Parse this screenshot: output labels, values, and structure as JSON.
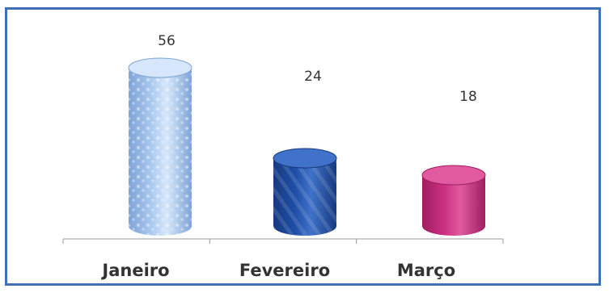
{
  "chart_data": {
    "type": "bar",
    "categories": [
      "Janeiro",
      "Fevereiro",
      "Março"
    ],
    "values": [
      56,
      24,
      18
    ],
    "title": "",
    "xlabel": "",
    "ylabel": "",
    "ylim": [
      0,
      60
    ],
    "grid": false,
    "legend": "none",
    "colors": [
      "#a9c8ee",
      "#1f4fa8",
      "#cc2f80"
    ],
    "colors_dark": [
      "#7fa4d6",
      "#173a7e",
      "#9e1f61"
    ],
    "colors_top": [
      "#d6e7fb",
      "#3f72c8",
      "#e15aa0"
    ]
  }
}
